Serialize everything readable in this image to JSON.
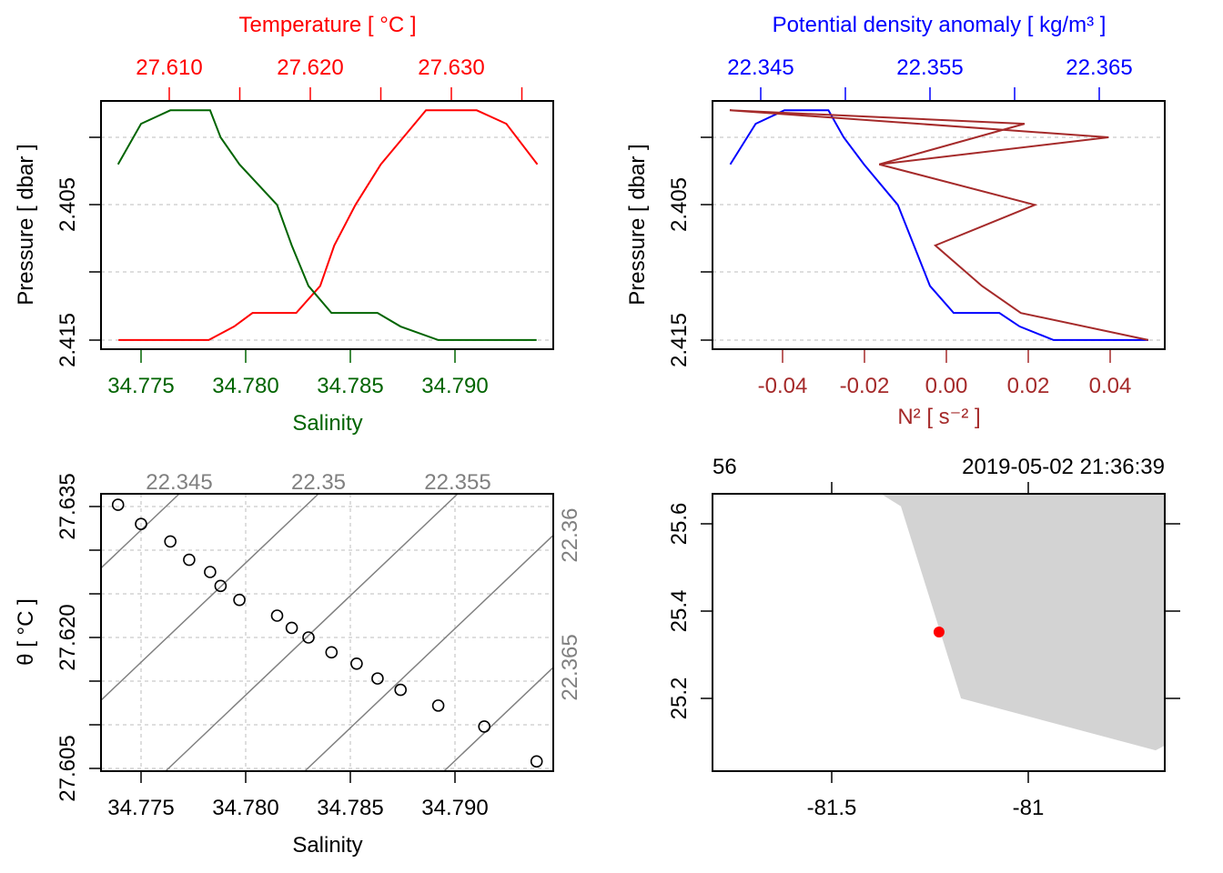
{
  "chart_data": [
    {
      "panel": "temperature-salinity-profile",
      "type": "line",
      "title": "Temperature [ °C ]",
      "xlabel": "Salinity",
      "ylabel": "Pressure [ dbar ]",
      "top_ticks": [
        "27.610",
        "27.620",
        "27.630"
      ],
      "bottom_ticks": [
        "34.775",
        "34.780",
        "34.785",
        "34.790"
      ],
      "y_ticks": [
        "2.405",
        "2.415"
      ],
      "ylim": [
        2.415,
        2.398
      ],
      "grid": true,
      "series": [
        {
          "name": "Temperature",
          "color": "#FF0000",
          "points": [
            [
              27.6064,
              2.415
            ],
            [
              27.6128,
              2.415
            ],
            [
              27.6146,
              2.414
            ],
            [
              27.6159,
              2.413
            ],
            [
              27.619,
              2.413
            ],
            [
              27.6207,
              2.411
            ],
            [
              27.6217,
              2.408
            ],
            [
              27.6232,
              2.405
            ],
            [
              27.625,
              2.402
            ],
            [
              27.6266,
              2.4
            ],
            [
              27.6282,
              2.398
            ],
            [
              27.6318,
              2.398
            ],
            [
              27.6339,
              2.399
            ],
            [
              27.6361,
              2.402
            ]
          ]
        },
        {
          "name": "Salinity",
          "color": "#006400",
          "points": [
            [
              34.7739,
              2.402
            ],
            [
              34.775,
              2.399
            ],
            [
              34.7764,
              2.398
            ],
            [
              34.7783,
              2.398
            ],
            [
              34.7788,
              2.4
            ],
            [
              34.7797,
              2.402
            ],
            [
              34.7815,
              2.405
            ],
            [
              34.7822,
              2.408
            ],
            [
              34.783,
              2.411
            ],
            [
              34.7841,
              2.413
            ],
            [
              34.7863,
              2.413
            ],
            [
              34.7874,
              2.414
            ],
            [
              34.7892,
              2.415
            ],
            [
              34.7939,
              2.415
            ]
          ]
        }
      ]
    },
    {
      "panel": "density-n2-profile",
      "type": "line",
      "title": "Potential density anomaly [ kg/m³ ]",
      "xlabel": "N² [ s⁻² ]",
      "ylabel": "Pressure [ dbar ]",
      "top_ticks": [
        "22.345",
        "22.355",
        "22.365"
      ],
      "bottom_ticks": [
        "-0.04",
        "-0.02",
        "0.00",
        "0.02",
        "0.04"
      ],
      "y_ticks": [
        "2.405",
        "2.415"
      ],
      "grid": true,
      "series": [
        {
          "name": "Potential density anomaly",
          "color": "#0000FF",
          "points": [
            [
              22.3432,
              2.402
            ],
            [
              22.3447,
              2.399
            ],
            [
              22.3464,
              2.398
            ],
            [
              22.349,
              2.398
            ],
            [
              22.3499,
              2.4
            ],
            [
              22.3511,
              2.402
            ],
            [
              22.3531,
              2.405
            ],
            [
              22.355,
              2.411
            ],
            [
              22.3564,
              2.413
            ],
            [
              22.3591,
              2.413
            ],
            [
              22.3603,
              2.414
            ],
            [
              22.3623,
              2.415
            ],
            [
              22.3679,
              2.415
            ]
          ]
        },
        {
          "name": "N2",
          "color": "#A52A2A",
          "points": [
            [
              -0.0164,
              2.402
            ],
            [
              0.0191,
              2.399
            ],
            [
              -0.0529,
              2.398
            ],
            [
              0.0396,
              2.4
            ],
            [
              -0.0164,
              2.402
            ],
            [
              0.0216,
              2.405
            ],
            [
              -0.0027,
              2.408
            ],
            [
              0.0087,
              2.411
            ],
            [
              0.0182,
              2.413
            ],
            [
              0.0493,
              2.415
            ]
          ]
        }
      ]
    },
    {
      "panel": "ts-diagram",
      "type": "scatter",
      "xlabel": "Salinity",
      "ylabel": "θ [ °C ]",
      "x_ticks": [
        "34.775",
        "34.780",
        "34.785",
        "34.790"
      ],
      "y_ticks": [
        "27.635",
        "27.620",
        "27.605"
      ],
      "grid": true,
      "isopycnals": [
        {
          "value": 22.345,
          "label": "22.345"
        },
        {
          "value": 22.35,
          "label": "22.35"
        },
        {
          "value": 22.355,
          "label": "22.355"
        },
        {
          "value": 22.36,
          "label": "22.36"
        },
        {
          "value": 22.365,
          "label": "22.365"
        }
      ],
      "points": [
        [
          34.7739,
          27.6352
        ],
        [
          34.775,
          27.633
        ],
        [
          34.7764,
          27.631
        ],
        [
          34.7773,
          27.6289
        ],
        [
          34.7783,
          27.6275
        ],
        [
          34.7788,
          27.6259
        ],
        [
          34.7797,
          27.6243
        ],
        [
          34.7815,
          27.6225
        ],
        [
          34.7822,
          27.6211
        ],
        [
          34.783,
          27.62
        ],
        [
          34.7841,
          27.6183
        ],
        [
          34.7853,
          27.617
        ],
        [
          34.7863,
          27.6153
        ],
        [
          34.7874,
          27.614
        ],
        [
          34.7892,
          27.6122
        ],
        [
          34.7914,
          27.6098
        ],
        [
          34.7939,
          27.6058
        ]
      ]
    },
    {
      "panel": "station-map",
      "type": "map",
      "station": "56",
      "time": "2019-05-02 21:36:39",
      "x_ticks": [
        "-81.5",
        "-81"
      ],
      "y_ticks": [
        "25.6",
        "25.4",
        "25.2"
      ],
      "station_location": {
        "lon": -81.227,
        "lat": 25.352,
        "color": "#FF0000"
      },
      "land_color": "#D3D3D3",
      "coastline": [
        [
          -81.375,
          25.669
        ],
        [
          -81.324,
          25.64
        ],
        [
          -81.171,
          25.2
        ],
        [
          -80.676,
          25.081
        ],
        [
          -80.653,
          25.092
        ],
        [
          -80.653,
          25.669
        ]
      ]
    }
  ]
}
